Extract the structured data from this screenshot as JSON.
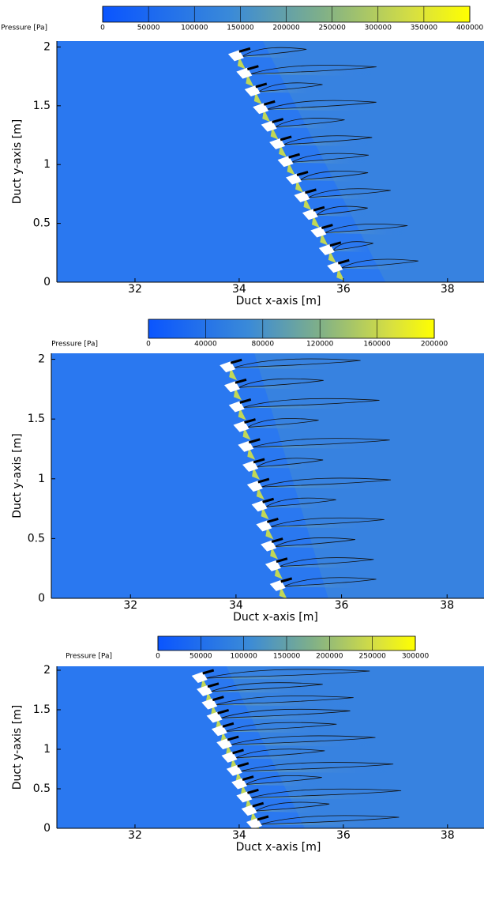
{
  "chart_data": [
    {
      "type": "contour",
      "colorbar_label": "Pressure [Pa]",
      "colorbar_lim": [
        0,
        400000
      ],
      "colorbar_ticks": [
        0,
        50000,
        100000,
        150000,
        200000,
        250000,
        300000,
        350000,
        400000
      ],
      "xlabel": "Duct x-axis [m]",
      "ylabel": "Duct y-axis [m]",
      "xlim": [
        30.5,
        38.7
      ],
      "ylim": [
        0,
        2.05
      ],
      "xticks": [
        32,
        34,
        36,
        38
      ],
      "yticks": [
        0,
        0.5,
        1,
        1.5,
        2
      ]
    },
    {
      "type": "contour",
      "colorbar_label": "Pressure [Pa]",
      "colorbar_lim": [
        0,
        200000
      ],
      "colorbar_ticks": [
        0,
        40000,
        80000,
        120000,
        160000,
        200000
      ],
      "xlabel": "Duct x-axis [m]",
      "ylabel": "Duct y-axis [m]",
      "xlim": [
        30.5,
        38.7
      ],
      "ylim": [
        0,
        2.05
      ],
      "xticks": [
        32,
        34,
        36,
        38
      ],
      "yticks": [
        0,
        0.5,
        1,
        1.5,
        2
      ]
    },
    {
      "type": "contour",
      "colorbar_label": "Pressure [Pa]",
      "colorbar_lim": [
        0,
        300000
      ],
      "colorbar_ticks": [
        0,
        50000,
        100000,
        150000,
        200000,
        250000,
        300000
      ],
      "xlabel": "Duct x-axis [m]",
      "ylabel": "Duct y-axis [m]",
      "xlim": [
        30.5,
        38.7
      ],
      "ylim": [
        0,
        2.05
      ],
      "xticks": [
        32,
        34,
        36,
        38
      ],
      "yticks": [
        0,
        0.5,
        1,
        1.5,
        2
      ]
    }
  ]
}
